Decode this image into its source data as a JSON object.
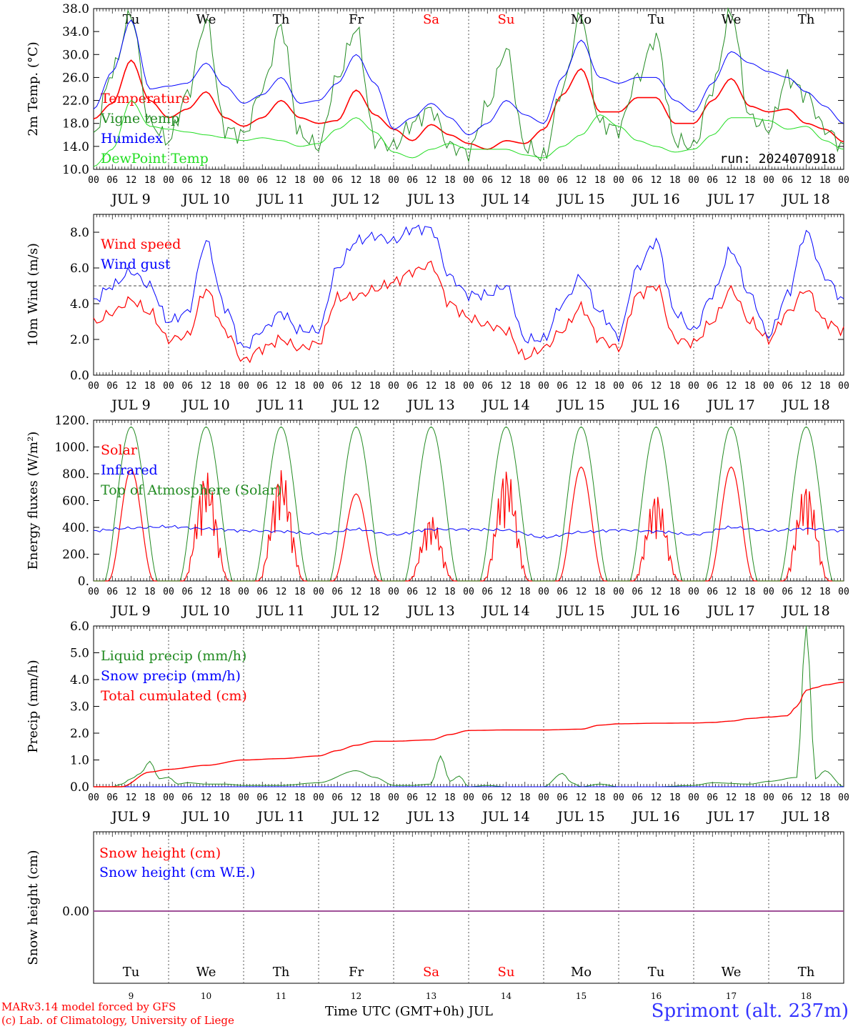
{
  "colors": {
    "red": "#ff0000",
    "green": "#228b22",
    "blue": "#0000ff",
    "lightgreen": "#22dd22",
    "purple": "#8040a0",
    "grid": "#555555"
  },
  "weekdays": [
    {
      "label": "Tu",
      "weekend": false
    },
    {
      "label": "We",
      "weekend": false
    },
    {
      "label": "Th",
      "weekend": false
    },
    {
      "label": "Fr",
      "weekend": false
    },
    {
      "label": "Sa",
      "weekend": true
    },
    {
      "label": "Su",
      "weekend": true
    },
    {
      "label": "Mo",
      "weekend": false
    },
    {
      "label": "Tu",
      "weekend": false
    },
    {
      "label": "We",
      "weekend": false
    },
    {
      "label": "Th",
      "weekend": false
    }
  ],
  "date_labels": [
    "JUL  9",
    "JUL 10",
    "JUL 11",
    "JUL 12",
    "JUL 13",
    "JUL 14",
    "JUL 15",
    "JUL 16",
    "JUL 17",
    "JUL 18"
  ],
  "day_numbers": [
    "9",
    "10",
    "11",
    "12",
    "13",
    "14",
    "15",
    "16",
    "17",
    "18"
  ],
  "hour_labels": [
    "00",
    "06",
    "12",
    "18"
  ],
  "run_label": "run: 2024070918",
  "footer": {
    "credit_line1": "MARv3.14 model forced by GFS",
    "credit_line2": "(c) Lab. of Climatology, University of Liege",
    "xaxis_title": "Time UTC (GMT+0h) JUL",
    "station": "Sprimont (alt. 237m)"
  },
  "chart_data": [
    {
      "type": "line",
      "ylabel": "2m Temp. (°C)",
      "ylim": [
        10,
        38
      ],
      "yticks": [
        "10.0",
        "14.0",
        "18.0",
        "22.0",
        "26.0",
        "30.0",
        "34.0",
        "38.0"
      ],
      "x_unit": "hour",
      "x": [
        0,
        6,
        12,
        18,
        24,
        30,
        36,
        42,
        48,
        54,
        60,
        66,
        72,
        78,
        84,
        90,
        96,
        102,
        108,
        114,
        120,
        126,
        132,
        138,
        144,
        150,
        156,
        162,
        168,
        174,
        180,
        186,
        192,
        198,
        204,
        210,
        216,
        222,
        228,
        234,
        240
      ],
      "series": [
        {
          "name": "Temperature",
          "color": "red",
          "width": 1.6,
          "values": [
            18.8,
            21.5,
            29,
            22,
            19,
            20.5,
            23.5,
            19,
            17.5,
            19,
            22,
            19,
            18,
            18.5,
            23.8,
            19.5,
            17,
            15,
            17.8,
            16,
            14.5,
            13.5,
            15,
            14.5,
            17,
            23,
            27.5,
            20,
            20,
            22.5,
            22.5,
            18,
            18,
            22,
            25.8,
            21,
            20,
            20.5,
            18,
            17,
            14.8
          ]
        },
        {
          "name": "Vigne temp",
          "color": "green",
          "width": 1,
          "values": [
            16,
            27,
            37,
            18,
            15,
            23,
            36,
            17,
            16,
            24,
            35,
            16,
            14,
            26,
            34.5,
            15,
            14,
            18,
            20.5,
            14,
            13,
            21,
            31,
            14,
            12,
            24,
            37,
            18,
            17,
            26,
            33,
            15,
            14,
            24,
            37.5,
            19,
            17,
            26,
            23,
            17,
            14
          ]
        },
        {
          "name": "Humidex",
          "color": "blue",
          "width": 1,
          "values": [
            20.5,
            27,
            36,
            24,
            24.5,
            25,
            28.5,
            24.5,
            21.5,
            23,
            26,
            21.5,
            22,
            25,
            30,
            25,
            17,
            19,
            21.5,
            19,
            16,
            18,
            22,
            19.5,
            18,
            26,
            32.5,
            26,
            25,
            26,
            26,
            22,
            20,
            25,
            30.5,
            28.5,
            27,
            26,
            23.5,
            21,
            18
          ]
        },
        {
          "name": "DewPoint Temp",
          "color": "lightgreen",
          "width": 1,
          "values": [
            10.5,
            13.5,
            22,
            17.5,
            17,
            16.5,
            16,
            15.5,
            15,
            15.5,
            15,
            14,
            14.5,
            17,
            19,
            16.5,
            13,
            12,
            13.5,
            14.5,
            13.5,
            13.5,
            13.5,
            12.5,
            12,
            14,
            16,
            19.5,
            17.5,
            15,
            14,
            13,
            13.5,
            16,
            19,
            19,
            18.5,
            17,
            17.5,
            15,
            13.5
          ]
        }
      ]
    },
    {
      "type": "line",
      "ylabel": "10m Wind (m/s)",
      "ylim": [
        0,
        9
      ],
      "yticks": [
        "0.0",
        "2.0",
        "4.0",
        "6.0",
        "8.0"
      ],
      "reference_line": 5,
      "x_unit": "hour",
      "x": [
        0,
        6,
        12,
        18,
        24,
        30,
        36,
        42,
        48,
        54,
        60,
        66,
        72,
        78,
        84,
        90,
        96,
        102,
        108,
        114,
        120,
        126,
        132,
        138,
        144,
        150,
        156,
        162,
        168,
        174,
        180,
        186,
        192,
        198,
        204,
        210,
        216,
        222,
        228,
        234,
        240
      ],
      "series": [
        {
          "name": "Wind speed",
          "color": "red",
          "width": 1.2,
          "values": [
            2.9,
            3.5,
            4.2,
            3.5,
            2.0,
            2.2,
            4.8,
            2.5,
            0.8,
            1.5,
            2.0,
            1.5,
            1.8,
            4.3,
            4.4,
            4.8,
            5.2,
            5.8,
            6.2,
            4.0,
            3.2,
            2.8,
            2.5,
            1.0,
            1.5,
            2.5,
            3.8,
            2.0,
            1.5,
            4.5,
            5.0,
            2.0,
            1.8,
            3.0,
            4.8,
            3.0,
            2.0,
            3.5,
            4.8,
            3.0,
            2.5
          ]
        },
        {
          "name": "Wind gust",
          "color": "blue",
          "width": 1,
          "values": [
            4.2,
            5.0,
            5.8,
            5.0,
            3.0,
            3.5,
            7.5,
            3.8,
            1.5,
            2.5,
            3.5,
            2.5,
            2.5,
            6.0,
            7.5,
            7.8,
            7.5,
            8.2,
            8.2,
            5.5,
            4.5,
            4.5,
            5.0,
            2.0,
            2.0,
            4.0,
            5.5,
            3.5,
            2.2,
            6.0,
            7.5,
            3.5,
            2.5,
            4.5,
            7.0,
            4.5,
            2.2,
            4.5,
            8.0,
            5.5,
            4.2
          ]
        }
      ]
    },
    {
      "type": "line",
      "ylabel": "Energy fluxes (W/m²)",
      "ylim": [
        0,
        1200
      ],
      "yticks": [
        "0.",
        "200.",
        "400.",
        "600.",
        "800.",
        "1000.",
        "1200."
      ],
      "x_unit": "hour",
      "series": [
        {
          "name": "Solar",
          "color": "red",
          "width": 1.2,
          "daily_peak": [
            830,
            820,
            840,
            650,
            490,
            850,
            850,
            660,
            850,
            730
          ]
        },
        {
          "name": "Infrared",
          "color": "blue",
          "width": 1,
          "x": [
            0,
            12,
            24,
            36,
            48,
            60,
            72,
            84,
            96,
            108,
            120,
            132,
            144,
            156,
            168,
            180,
            192,
            204,
            216,
            228,
            240
          ],
          "values": [
            375,
            395,
            405,
            390,
            375,
            370,
            350,
            385,
            345,
            385,
            385,
            380,
            325,
            365,
            380,
            370,
            345,
            400,
            375,
            390,
            375
          ]
        },
        {
          "name": "Top of Atmosphere (Solar)",
          "color": "green",
          "width": 1,
          "daily_peak": [
            1150,
            1150,
            1150,
            1150,
            1150,
            1150,
            1150,
            1150,
            1150,
            1150
          ],
          "sunrise_hour": 3.5,
          "sunset_hour": 20.5
        }
      ]
    },
    {
      "type": "line",
      "ylabel": "Precip (mm/h)",
      "ylim": [
        0,
        6
      ],
      "yticks": [
        "0.0",
        "1.0",
        "2.0",
        "3.0",
        "4.0",
        "5.0",
        "6.0"
      ],
      "x_unit": "hour",
      "series": [
        {
          "name": "Liquid precip (mm/h)",
          "color": "green",
          "width": 1,
          "x": [
            0,
            6,
            9,
            12,
            15,
            18,
            21,
            24,
            27,
            30,
            36,
            42,
            48,
            60,
            72,
            84,
            90,
            96,
            102,
            108,
            111,
            114,
            117,
            120,
            126,
            132,
            144,
            150,
            153,
            156,
            162,
            168,
            180,
            192,
            198,
            210,
            216,
            225,
            228,
            231,
            234,
            240
          ],
          "values": [
            0,
            0,
            0.1,
            0.3,
            0.5,
            0.95,
            0.3,
            0.35,
            0.1,
            0.15,
            0.1,
            0.1,
            0.05,
            0.05,
            0.15,
            0.6,
            0.35,
            0.05,
            0.05,
            0.1,
            1.15,
            0.2,
            0.4,
            0,
            0.05,
            0,
            0,
            0.5,
            0.15,
            0,
            0.1,
            0,
            0,
            0.05,
            0.15,
            0.1,
            0.2,
            0.35,
            6.0,
            0.3,
            0.6,
            0
          ]
        },
        {
          "name": "Snow precip (mm/h)",
          "color": "blue",
          "width": 1,
          "x": [
            0,
            240
          ],
          "values": [
            0,
            0
          ]
        },
        {
          "name": "Total cumulated (cm)",
          "color": "red",
          "width": 1.4,
          "x": [
            0,
            9,
            18,
            24,
            36,
            48,
            60,
            72,
            78,
            84,
            90,
            96,
            108,
            114,
            120,
            132,
            144,
            156,
            162,
            168,
            180,
            192,
            198,
            204,
            210,
            216,
            222,
            225,
            228,
            231,
            234,
            240
          ],
          "values": [
            0,
            0,
            0.55,
            0.65,
            0.8,
            1.0,
            1.05,
            1.15,
            1.35,
            1.55,
            1.7,
            1.7,
            1.75,
            1.95,
            2.1,
            2.12,
            2.12,
            2.15,
            2.3,
            2.35,
            2.37,
            2.38,
            2.4,
            2.45,
            2.55,
            2.6,
            2.65,
            3.0,
            3.6,
            3.7,
            3.8,
            3.9
          ]
        }
      ]
    },
    {
      "type": "line",
      "ylabel": "Snow height (cm)",
      "yticks": [
        "0.00"
      ],
      "x_unit": "hour",
      "series": [
        {
          "name": "Snow height (cm)",
          "color": "red",
          "width": 1,
          "x": [
            0,
            240
          ],
          "values": [
            0,
            0
          ]
        },
        {
          "name": "Snow height (cm W.E.)",
          "color": "blue",
          "width": 1,
          "x": [
            0,
            240
          ],
          "values": [
            0,
            0
          ]
        }
      ]
    }
  ]
}
